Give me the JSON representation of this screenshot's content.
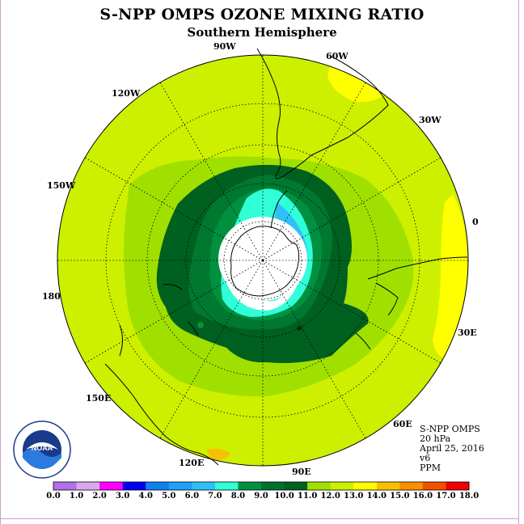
{
  "title": "S-NPP OMPS OZONE MIXING RATIO",
  "subtitle": "Southern Hemisphere",
  "longitude_labels": [
    "90W",
    "60W",
    "30W",
    "0",
    "30E",
    "60E",
    "90E",
    "120E",
    "150E",
    "180",
    "150W",
    "120W"
  ],
  "info": {
    "instrument": "S-NPP OMPS",
    "level": "20 hPa",
    "date": "April 25, 2016",
    "version": "v6",
    "units": "PPM"
  },
  "logo_text": "NOAA",
  "colorbar": {
    "ticks": [
      "0.0",
      "1.0",
      "2.0",
      "3.0",
      "4.0",
      "5.0",
      "6.0",
      "7.0",
      "8.0",
      "9.0",
      "10.0",
      "11.0",
      "12.0",
      "13.0",
      "14.0",
      "15.0",
      "16.0",
      "17.0",
      "18.0"
    ],
    "colors": [
      "#b070e8",
      "#d8a8f0",
      "#ff00ff",
      "#0000f0",
      "#1080f0",
      "#20a0f8",
      "#30c0f8",
      "#30ffd8",
      "#009040",
      "#007030",
      "#006020",
      "#a0e000",
      "#ccf000",
      "#ffff00",
      "#f8c000",
      "#f89000",
      "#f05000",
      "#f00000",
      "#805030"
    ]
  },
  "map_colors": {
    "level_12_13": "#ccf000",
    "level_11_12": "#a0e000",
    "level_10_11": "#006020",
    "level_9_10": "#007830",
    "level_8_9": "#009040",
    "level_7_8": "#30ffd8",
    "level_6_7": "#30c0f8",
    "level_13_14": "#ffff00",
    "no_data": "#ffffff"
  }
}
